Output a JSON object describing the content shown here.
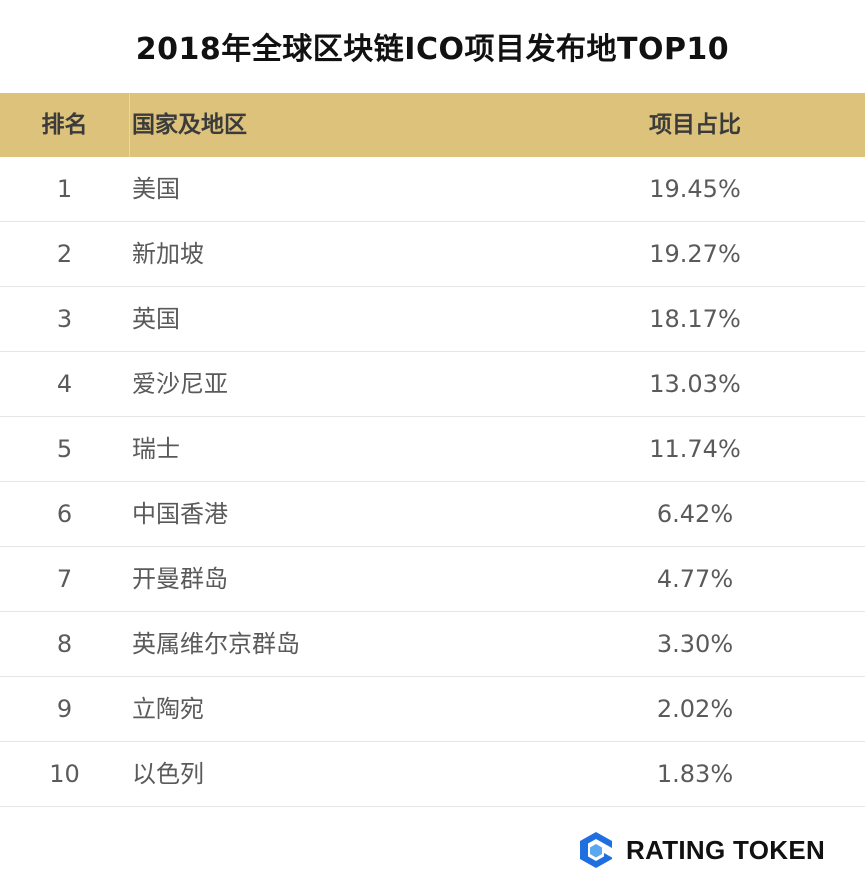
{
  "title": "2018年全球区块链ICO项目发布地TOP10",
  "table": {
    "headers": {
      "rank": "排名",
      "country": "国家及地区",
      "share": "项目占比"
    },
    "rows": [
      {
        "rank": "1",
        "country": "美国",
        "share": "19.45%"
      },
      {
        "rank": "2",
        "country": "新加坡",
        "share": "19.27%"
      },
      {
        "rank": "3",
        "country": "英国",
        "share": "18.17%"
      },
      {
        "rank": "4",
        "country": "爱沙尼亚",
        "share": "13.03%"
      },
      {
        "rank": "5",
        "country": "瑞士",
        "share": "11.74%"
      },
      {
        "rank": "6",
        "country": "中国香港",
        "share": "6.42%"
      },
      {
        "rank": "7",
        "country": "开曼群岛",
        "share": "4.77%"
      },
      {
        "rank": "8",
        "country": "英属维尔京群岛",
        "share": "3.30%"
      },
      {
        "rank": "9",
        "country": "立陶宛",
        "share": "2.02%"
      },
      {
        "rank": "10",
        "country": "以色列",
        "share": "1.83%"
      }
    ]
  },
  "logo": {
    "text": "RATING TOKEN",
    "icon": "rating-token-logo-icon",
    "color": "#1f6fe0"
  },
  "colors": {
    "header_background": "#dcc27a",
    "title": "#111111",
    "row_text": "#5a5a5a",
    "row_border": "#e6e6e6"
  }
}
